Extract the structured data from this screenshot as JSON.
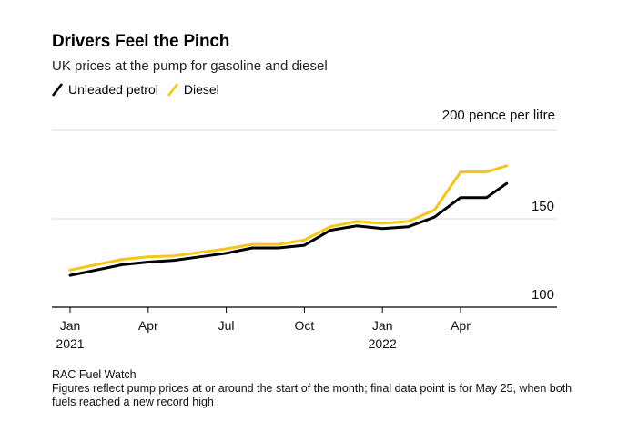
{
  "title": "Drivers Feel the Pinch",
  "subtitle": "UK prices at the pump for gasoline and diesel",
  "source": "RAC Fuel Watch",
  "note": "Figures reflect pump prices at or around the start of the month; final data point is for May 25, when both fuels reached a new record high",
  "chart_data": {
    "type": "line",
    "unit_label": "200 pence per litre",
    "y_ticks": [
      "150",
      "100"
    ],
    "ylim": [
      100,
      200
    ],
    "x_tick_labels": [
      {
        "month": "Jan",
        "year": "2021"
      },
      {
        "month": "Apr",
        "year": ""
      },
      {
        "month": "Jul",
        "year": ""
      },
      {
        "month": "Oct",
        "year": ""
      },
      {
        "month": "Jan",
        "year": "2022"
      },
      {
        "month": "Apr",
        "year": ""
      }
    ],
    "x": [
      "2021-01",
      "2021-02",
      "2021-03",
      "2021-04",
      "2021-05",
      "2021-06",
      "2021-07",
      "2021-08",
      "2021-09",
      "2021-10",
      "2021-11",
      "2021-12",
      "2022-01",
      "2022-02",
      "2022-03",
      "2022-04",
      "2022-05",
      "2022-05-25"
    ],
    "series": [
      {
        "name": "Unleaded petrol",
        "color": "#000000",
        "values": [
          118,
          121,
          124,
          125.5,
          126.5,
          128.5,
          130.5,
          133.5,
          133.5,
          135,
          143.5,
          146,
          144.5,
          145.5,
          151,
          162,
          162,
          170
        ]
      },
      {
        "name": "Diesel",
        "color": "#f5c518",
        "values": [
          121,
          124,
          127,
          128.5,
          129,
          131,
          133,
          135.5,
          135.5,
          138,
          145.5,
          148.5,
          147.5,
          148.5,
          155,
          176.5,
          176.5,
          180
        ]
      }
    ],
    "grid": true,
    "legend_position": "top-left"
  }
}
